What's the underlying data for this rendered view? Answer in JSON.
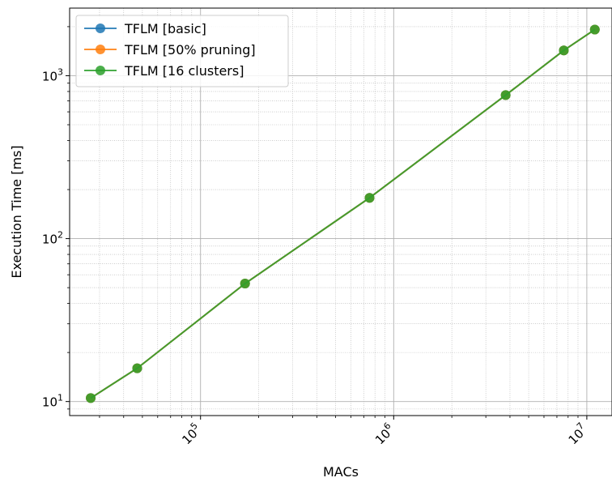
{
  "chart_data": {
    "type": "line",
    "xscale": "log",
    "yscale": "log",
    "xlabel": "MACs",
    "ylabel": "Execution Time [ms]",
    "xlim": [
      21000,
      13500000
    ],
    "ylim": [
      8.2,
      2600
    ],
    "grid": "major and minor",
    "legend_position": "top-left",
    "x_ticks": [
      {
        "value": 100000,
        "base": "10",
        "exp": "5"
      },
      {
        "value": 1000000,
        "base": "10",
        "exp": "6"
      },
      {
        "value": 10000000,
        "base": "10",
        "exp": "7"
      }
    ],
    "y_ticks": [
      {
        "value": 10,
        "base": "10",
        "exp": "1"
      },
      {
        "value": 100,
        "base": "10",
        "exp": "2"
      },
      {
        "value": 1000,
        "base": "10",
        "exp": "3"
      }
    ],
    "x": [
      27000,
      47000,
      170000,
      750000,
      3800000,
      7600000,
      11000000
    ],
    "series": [
      {
        "name": "TFLM [basic]",
        "color": "#1f77b4",
        "values": [
          10.5,
          16.0,
          53.0,
          178,
          760,
          1430,
          1920
        ]
      },
      {
        "name": "TFLM [50% pruning]",
        "color": "#ff7f0e",
        "values": [
          10.5,
          16.0,
          53.0,
          178,
          760,
          1430,
          1920
        ]
      },
      {
        "name": "TFLM [16 clusters]",
        "color": "#2ca02c",
        "values": [
          10.5,
          16.0,
          53.0,
          178,
          760,
          1430,
          1920
        ]
      }
    ]
  }
}
